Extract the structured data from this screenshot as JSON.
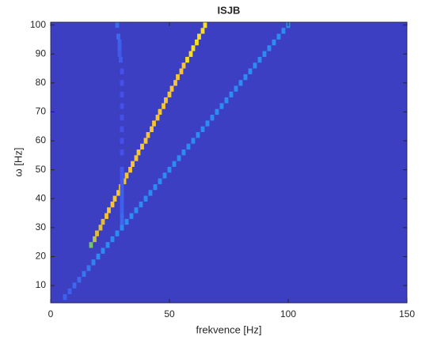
{
  "chart_data": {
    "type": "heatmap",
    "title": "ISJB",
    "xlabel": "frekvence [Hz]",
    "ylabel": "ω [Hz]",
    "xlim": [
      0,
      150
    ],
    "ylim": [
      4,
      101
    ],
    "xticks": [
      0,
      50,
      100,
      150
    ],
    "yticks": [
      10,
      20,
      30,
      40,
      50,
      60,
      70,
      80,
      90,
      100
    ],
    "grid": false,
    "background": "#3d3fc3",
    "clim": [
      0,
      1
    ],
    "ridges": [
      {
        "x": [
          17,
          18.5,
          19.5,
          21,
          22,
          23.5,
          24.5,
          26,
          27,
          28.5,
          29.5,
          31,
          32,
          33.5,
          34.5,
          36,
          37,
          38.5,
          40,
          41,
          42.5,
          43.5,
          45,
          46,
          47.5,
          48.5,
          50,
          51,
          52.5,
          53.5,
          55,
          56,
          57.5,
          59,
          60,
          61.5,
          62.5,
          64,
          65
        ],
        "y": [
          24,
          26,
          28,
          30,
          32,
          34,
          36,
          38,
          40,
          42,
          44,
          46,
          48,
          50,
          52,
          54,
          56,
          58,
          60,
          62,
          64,
          66,
          68,
          70,
          72,
          74,
          76,
          78,
          80,
          82,
          84,
          86,
          88,
          90,
          92,
          94,
          96,
          98,
          100
        ],
        "values": [
          0.7,
          0.8,
          0.85,
          0.85,
          0.85,
          0.9,
          0.9,
          0.9,
          0.9,
          0.9,
          0.9,
          0.9,
          0.9,
          0.9,
          0.9,
          0.9,
          0.9,
          0.9,
          0.9,
          0.9,
          0.9,
          0.9,
          0.9,
          0.9,
          0.9,
          0.9,
          0.9,
          0.9,
          0.9,
          0.9,
          0.9,
          0.9,
          0.95,
          0.95,
          0.95,
          0.95,
          0.95,
          0.95,
          0.95
        ]
      },
      {
        "x": [
          6,
          8,
          10,
          12,
          14,
          16,
          18,
          20,
          22,
          24,
          26,
          28,
          30,
          32,
          34,
          36,
          38,
          40,
          42,
          44,
          46,
          48,
          50,
          52,
          54,
          56,
          58,
          60,
          62,
          64,
          66,
          68,
          70,
          72,
          74,
          76,
          78,
          80,
          82,
          84,
          86,
          88,
          90,
          92,
          94,
          96,
          98,
          100
        ],
        "y": [
          6,
          8,
          10,
          12,
          14,
          16,
          18,
          20,
          22,
          24,
          26,
          28,
          30,
          32,
          34,
          36,
          38,
          40,
          42,
          44,
          46,
          48,
          50,
          52,
          54,
          56,
          58,
          60,
          62,
          64,
          66,
          68,
          70,
          72,
          74,
          76,
          78,
          80,
          82,
          84,
          86,
          88,
          90,
          92,
          94,
          96,
          98,
          100
        ],
        "values": [
          0.2,
          0.2,
          0.22,
          0.22,
          0.25,
          0.25,
          0.28,
          0.3,
          0.3,
          0.3,
          0.3,
          0.3,
          0.3,
          0.3,
          0.3,
          0.3,
          0.3,
          0.3,
          0.3,
          0.3,
          0.3,
          0.3,
          0.3,
          0.3,
          0.3,
          0.3,
          0.3,
          0.3,
          0.3,
          0.3,
          0.3,
          0.3,
          0.3,
          0.3,
          0.3,
          0.3,
          0.3,
          0.3,
          0.3,
          0.3,
          0.3,
          0.3,
          0.3,
          0.3,
          0.3,
          0.3,
          0.3,
          0.3
        ]
      },
      {
        "x": [
          30,
          30,
          30,
          30,
          30,
          30,
          30,
          30,
          30,
          30,
          30,
          30,
          30,
          30,
          30,
          30,
          30,
          30,
          29.5,
          29,
          29,
          29,
          28.5,
          28
        ],
        "y": [
          32,
          34,
          36,
          38,
          40,
          42,
          44,
          46,
          48,
          50,
          56,
          60,
          64,
          68,
          72,
          76,
          80,
          84,
          88,
          90,
          92,
          94,
          96,
          100
        ],
        "values": [
          0.22,
          0.22,
          0.2,
          0.2,
          0.2,
          0.2,
          0.18,
          0.18,
          0.18,
          0.18,
          0.16,
          0.16,
          0.16,
          0.16,
          0.16,
          0.16,
          0.16,
          0.16,
          0.18,
          0.18,
          0.2,
          0.2,
          0.22,
          0.22
        ]
      }
    ]
  }
}
